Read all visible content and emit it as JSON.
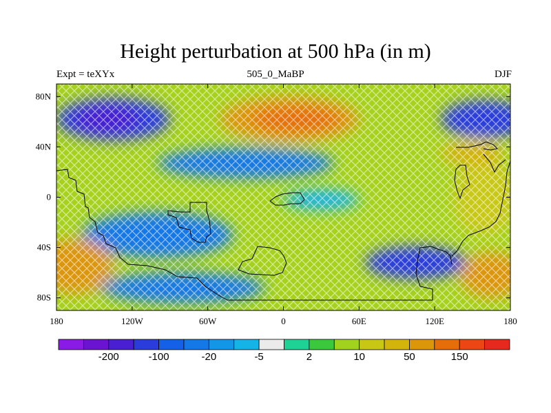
{
  "header": {
    "title": "Height perturbation at 500 hPa (in m)",
    "left": "Expt = teXYx",
    "center": "505_0_MaBP",
    "right": "DJF"
  },
  "map": {
    "lon_range": [
      -180,
      180
    ],
    "lat_range": [
      -90,
      90
    ],
    "x_ticks": [
      {
        "value": -180,
        "label": "180"
      },
      {
        "value": -120,
        "label": "120W"
      },
      {
        "value": -60,
        "label": "60W"
      },
      {
        "value": 0,
        "label": "0"
      },
      {
        "value": 60,
        "label": "60E"
      },
      {
        "value": 120,
        "label": "120E"
      },
      {
        "value": 180,
        "label": "180"
      }
    ],
    "y_ticks": [
      {
        "value": 80,
        "label": "80N"
      },
      {
        "value": 40,
        "label": "40N"
      },
      {
        "value": 0,
        "label": "0"
      },
      {
        "value": -40,
        "label": "40S"
      },
      {
        "value": -80,
        "label": "80S"
      }
    ],
    "coastline_color": "#000000"
  },
  "colorbar": {
    "colors": [
      "#8a1ae6",
      "#6a14d2",
      "#4a1ed2",
      "#2a3cdc",
      "#1460e6",
      "#1478e6",
      "#1496e6",
      "#14b4e6",
      "#ebebeb",
      "#1ed296",
      "#3cc83c",
      "#a0d21e",
      "#c8c814",
      "#d2b40a",
      "#dc960a",
      "#e66e0a",
      "#eb4614",
      "#e6281e"
    ],
    "labels": [
      {
        "after_box": 1,
        "text": "-200"
      },
      {
        "after_box": 3,
        "text": "-100"
      },
      {
        "after_box": 5,
        "text": "-20"
      },
      {
        "after_box": 7,
        "text": "-5"
      },
      {
        "after_box": 9,
        "text": "2"
      },
      {
        "after_box": 11,
        "text": "10"
      },
      {
        "after_box": 13,
        "text": "50"
      },
      {
        "after_box": 15,
        "text": "150"
      }
    ]
  },
  "field": {
    "background": "#a6d21e",
    "blobs": [
      {
        "lon": -135,
        "lat": 62,
        "rlon": 45,
        "rlat": 17,
        "color": "#2a3cdc"
      },
      {
        "lon": -140,
        "lat": 62,
        "rlon": 26,
        "rlat": 10,
        "color": "#4a1ed2"
      },
      {
        "lon": 160,
        "lat": 62,
        "rlon": 35,
        "rlat": 15,
        "color": "#2a3cdc"
      },
      {
        "lon": 5,
        "lat": 62,
        "rlon": 55,
        "rlat": 18,
        "color": "#dc960a"
      },
      {
        "lon": 10,
        "lat": 62,
        "rlon": 35,
        "rlat": 10,
        "color": "#e66e0a"
      },
      {
        "lon": -30,
        "lat": 27,
        "rlon": 70,
        "rlat": 12,
        "color": "#1478e6"
      },
      {
        "lon": -100,
        "lat": -30,
        "rlon": 60,
        "rlat": 18,
        "color": "#1478e6"
      },
      {
        "lon": -80,
        "lat": -72,
        "rlon": 65,
        "rlat": 12,
        "color": "#1478e6"
      },
      {
        "lon": 105,
        "lat": -52,
        "rlon": 40,
        "rlat": 13,
        "color": "#2a3cdc"
      },
      {
        "lon": -165,
        "lat": -55,
        "rlon": 30,
        "rlat": 22,
        "color": "#dc960a"
      },
      {
        "lon": 165,
        "lat": -62,
        "rlon": 25,
        "rlat": 18,
        "color": "#dc960a"
      },
      {
        "lon": 160,
        "lat": 0,
        "rlon": 25,
        "rlat": 30,
        "color": "#c8c814"
      },
      {
        "lon": 150,
        "lat": 35,
        "rlon": 25,
        "rlat": 10,
        "color": "#d2b40a"
      },
      {
        "lon": 30,
        "lat": -2,
        "rlon": 30,
        "rlat": 8,
        "color": "#14b4e6"
      }
    ]
  }
}
